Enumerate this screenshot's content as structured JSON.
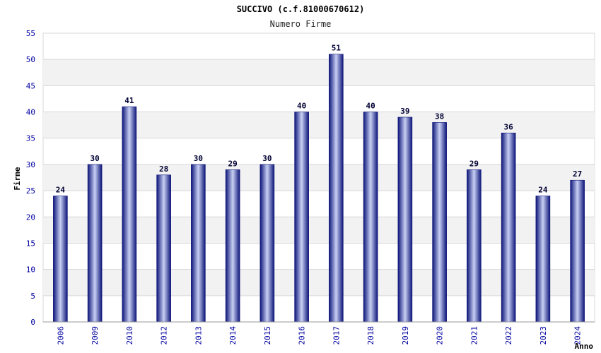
{
  "chart_data": {
    "type": "bar",
    "title": "SUCCIVO (c.f.81000670612)",
    "subtitle": "Numero Firme",
    "xlabel": "Anno",
    "ylabel": "Firme",
    "ylim": [
      0,
      55
    ],
    "yticks": [
      0,
      5,
      10,
      15,
      20,
      25,
      30,
      35,
      40,
      45,
      50,
      55
    ],
    "grid": true,
    "categories": [
      "2006",
      "2009",
      "2010",
      "2012",
      "2013",
      "2014",
      "2015",
      "2016",
      "2017",
      "2018",
      "2019",
      "2020",
      "2021",
      "2022",
      "2023",
      "2024"
    ],
    "values": [
      24,
      30,
      41,
      28,
      30,
      29,
      30,
      40,
      51,
      40,
      39,
      38,
      29,
      36,
      24,
      27
    ],
    "colors": {
      "bar_dark": "#1a1f8c",
      "bar_light": "#c8d0f4",
      "tick_text": "#0000a0",
      "band": "#f2f2f2",
      "grid": "#d8d8d8"
    }
  }
}
